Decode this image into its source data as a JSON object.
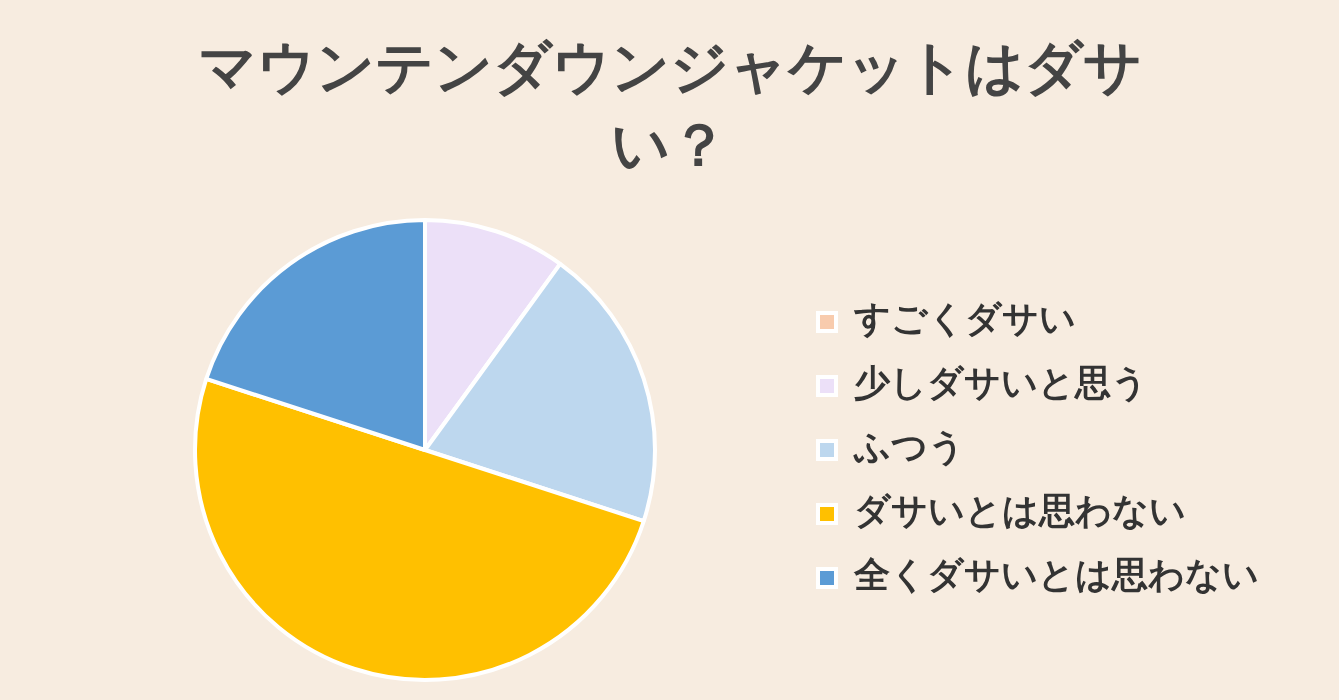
{
  "chart_data": {
    "type": "pie",
    "title": "マウンテンダウンジャケットはダサい？",
    "categories": [
      "すごくダサい",
      "少しダサいと思う",
      "ふつう",
      "ダサいとは思わない",
      "全くダサいとは思わない"
    ],
    "values": [
      0,
      10,
      20,
      50,
      20
    ],
    "colors": [
      "#f8cbad",
      "#ece0f8",
      "#bdd7ee",
      "#ffc000",
      "#5b9bd5"
    ],
    "legend": "right"
  }
}
